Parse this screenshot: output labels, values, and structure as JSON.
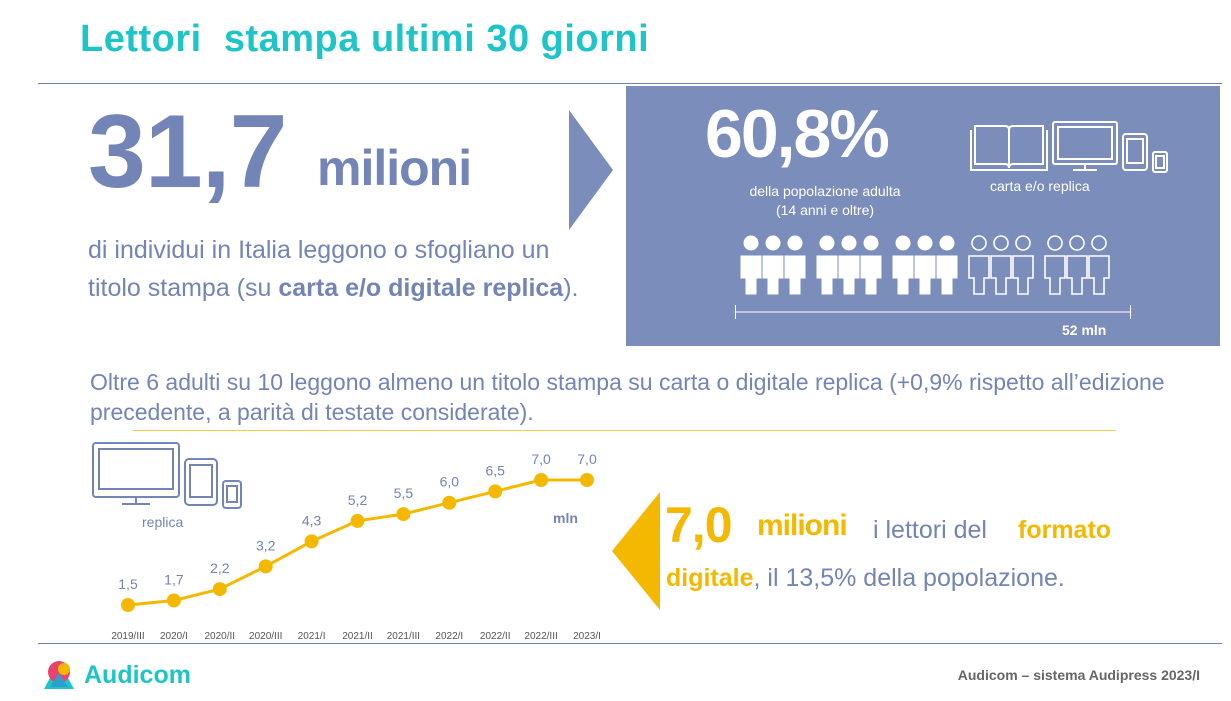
{
  "header": {
    "title": "Lettori  stampa ultimi 30 giorni"
  },
  "headline": {
    "number": "31,7",
    "unit": "milioni",
    "desc_pre": "di individui in Italia leggono o sfogliano un titolo stampa (su ",
    "desc_bold": "carta e/o digitale replica",
    "desc_post": ")."
  },
  "panel": {
    "percent": "60,8%",
    "population_line1": "della popolazione adulta",
    "population_line2": "(14 anni e oltre)",
    "media_label": "carta e/o replica",
    "total_label": "52 mln",
    "people_share": 0.608
  },
  "summary": "Oltre 6 adulti su 10 leggono almeno un titolo stampa su carta o digitale replica (+0,9% rispetto all’edizione precedente, a parità di testate considerate).",
  "highlight": {
    "number": "7,0",
    "unit": "milioni",
    "text1": "i lettori del",
    "strong1": "formato",
    "strong2": "digitale",
    "text2": ", il 13,5% della popolazione."
  },
  "device_label": "replica",
  "colors": {
    "teal": "#1fc4c9",
    "slate": "#7384b6",
    "panel": "#7b8dbb",
    "gold": "#f5b800"
  },
  "chart_data": {
    "type": "line",
    "categories": [
      "2019/III",
      "2020/I",
      "2020/II",
      "2020/III",
      "2021/I",
      "2021/II",
      "2021/III",
      "2022/I",
      "2022/II",
      "2022/III",
      "2023/I"
    ],
    "values": [
      1.5,
      1.7,
      2.2,
      3.2,
      4.3,
      5.2,
      5.5,
      6.0,
      6.5,
      7.0,
      7.0
    ],
    "value_labels": [
      "1,5",
      "1,7",
      "2,2",
      "3,2",
      "4,3",
      "5,2",
      "5,5",
      "6,0",
      "6,5",
      "7,0",
      "7,0"
    ],
    "unit_label": "mln",
    "series_color": "#f5b800"
  },
  "footer": {
    "brand": "Audicom",
    "source": "Audicom – sistema Audipress 2023/I"
  }
}
